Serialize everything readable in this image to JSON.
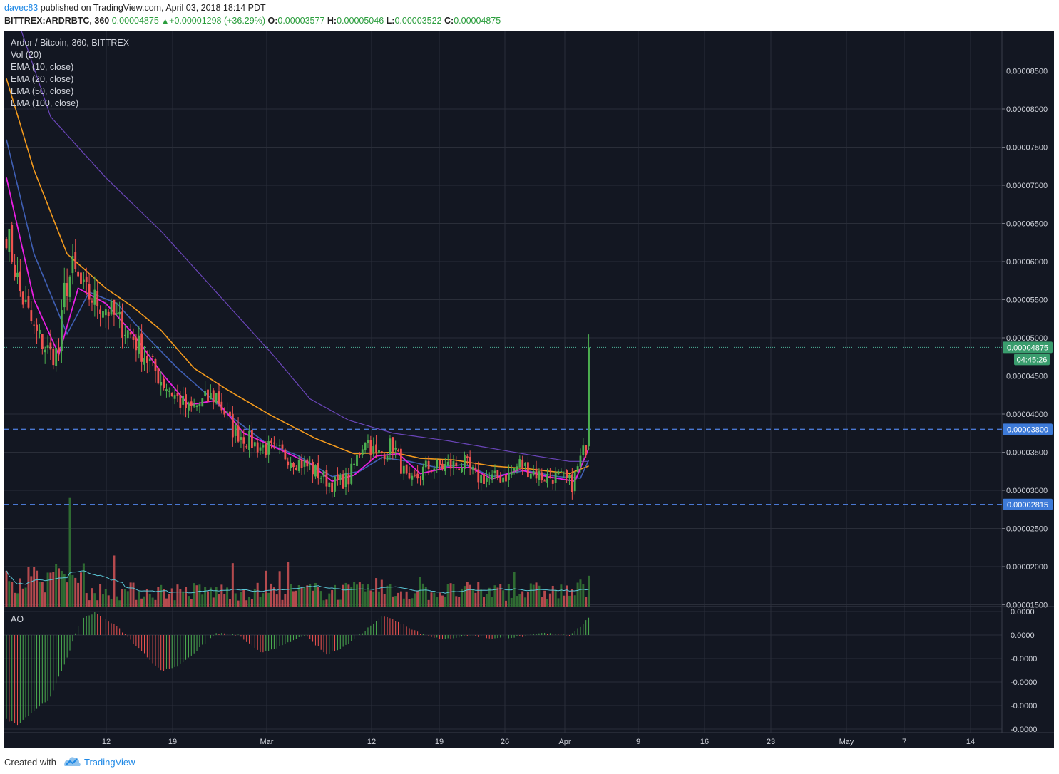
{
  "header": {
    "author": "davec83",
    "published_text": " published on TradingView.com, April 03, 2018 18:14 PDT",
    "symbol": "BITTREX:ARDRBTC, 360",
    "last": "0.00004875",
    "change": "+0.00001298 (+36.29%)",
    "o_label": "O:",
    "o_value": "0.00003577",
    "h_label": "H:",
    "h_value": "0.00005046",
    "l_label": "L:",
    "l_value": "0.00003522",
    "c_label": "C:",
    "c_value": "0.00004875"
  },
  "legend": {
    "title": "Ardor / Bitcoin, 360, BITTREX",
    "vol": "Vol (20)",
    "ema10": "EMA (10, close)",
    "ema20": "EMA (20, close)",
    "ema50": "EMA (50, close)",
    "ema100": "EMA (100, close)",
    "ao": "AO"
  },
  "footer": {
    "created_with": "Created with",
    "brand": "TradingView"
  },
  "colors": {
    "background": "#131722",
    "grid": "#2a2e39",
    "up": "#4caf50",
    "down": "#ef5350",
    "ema10": "#e91ee3",
    "ema20": "#3f5fb4",
    "ema50": "#f39a1d",
    "ema100": "#6a45b8",
    "vol_ma": "#5bc7d6",
    "hline": "#4a78d2",
    "price_badge": "#3a9d6e",
    "level_badge": "#3d7ad8"
  },
  "chart_data": {
    "type": "candlestick",
    "symbol": "ARDRBTC",
    "exchange": "BITTREX",
    "interval": "360",
    "y_axis_ticks": [
      "0.00008500",
      "0.00008000",
      "0.00007500",
      "0.00007000",
      "0.00006500",
      "0.00006000",
      "0.00005500",
      "0.00005000",
      "0.00004500",
      "0.00004000",
      "0.00003500",
      "0.00003000",
      "0.00002500",
      "0.00002000",
      "0.00001500"
    ],
    "y_range": [
      1.95e-05,
      8.55e-05
    ],
    "x_labels": [
      "12",
      "19",
      "Mar",
      "12",
      "19",
      "26",
      "Apr",
      "9",
      "16",
      "23",
      "May",
      "7",
      "14"
    ],
    "ao_axis_ticks": [
      "0.0000",
      "0.0000",
      "-0.0000",
      "-0.0000",
      "-0.0000",
      "-0.0000"
    ],
    "current_price": {
      "value": "0.00004875",
      "countdown": "04:45:26"
    },
    "horizontal_levels": [
      {
        "value": "0.00003800"
      },
      {
        "value": "0.00002815"
      }
    ],
    "price_anchors": [
      [
        0,
        6.4e-05
      ],
      [
        5,
        5.6e-05
      ],
      [
        10,
        5.1e-05
      ],
      [
        16,
        4.78e-05
      ],
      [
        19,
        4.82e-05
      ],
      [
        21,
        5.6e-05
      ],
      [
        24,
        5.9e-05
      ],
      [
        28,
        5.6e-05
      ],
      [
        36,
        5.4e-05
      ],
      [
        46,
        5e-05
      ],
      [
        56,
        4.45e-05
      ],
      [
        62,
        4.2e-05
      ],
      [
        66,
        4.05e-05
      ],
      [
        76,
        4.25e-05
      ],
      [
        82,
        3.8e-05
      ],
      [
        90,
        3.6e-05
      ],
      [
        100,
        3.48e-05
      ],
      [
        110,
        3.3e-05
      ],
      [
        118,
        3.08e-05
      ],
      [
        124,
        3.15e-05
      ],
      [
        130,
        3.7e-05
      ],
      [
        134,
        3.45e-05
      ],
      [
        140,
        3.6e-05
      ],
      [
        146,
        3.05e-05
      ],
      [
        152,
        3.3e-05
      ],
      [
        160,
        3.32e-05
      ],
      [
        166,
        3.35e-05
      ],
      [
        170,
        3.18e-05
      ],
      [
        176,
        3.15e-05
      ],
      [
        182,
        3.2e-05
      ],
      [
        186,
        3.35e-05
      ],
      [
        194,
        3.18e-05
      ],
      [
        200,
        3.18e-05
      ],
      [
        205,
        3.08e-05
      ],
      [
        208,
        3.4e-05
      ],
      [
        210,
        3.58e-05
      ],
      [
        211,
        4.88e-05
      ]
    ],
    "ema10_anchors": [
      [
        0,
        7.1e-05
      ],
      [
        10,
        5.5e-05
      ],
      [
        19,
        4.78e-05
      ],
      [
        26,
        5.65e-05
      ],
      [
        36,
        5.45e-05
      ],
      [
        46,
        5.05e-05
      ],
      [
        56,
        4.55e-05
      ],
      [
        66,
        4.12e-05
      ],
      [
        76,
        4.18e-05
      ],
      [
        86,
        3.75e-05
      ],
      [
        100,
        3.52e-05
      ],
      [
        110,
        3.35e-05
      ],
      [
        118,
        3.12e-05
      ],
      [
        126,
        3.2e-05
      ],
      [
        134,
        3.45e-05
      ],
      [
        142,
        3.48e-05
      ],
      [
        150,
        3.22e-05
      ],
      [
        160,
        3.3e-05
      ],
      [
        168,
        3.3e-05
      ],
      [
        176,
        3.15e-05
      ],
      [
        186,
        3.27e-05
      ],
      [
        196,
        3.18e-05
      ],
      [
        206,
        3.12e-05
      ],
      [
        211,
        3.55e-05
      ]
    ],
    "ema20_anchors": [
      [
        0,
        7.6e-05
      ],
      [
        10,
        6.1e-05
      ],
      [
        22,
        5.05e-05
      ],
      [
        30,
        5.6e-05
      ],
      [
        40,
        5.45e-05
      ],
      [
        50,
        5.05e-05
      ],
      [
        62,
        4.6e-05
      ],
      [
        72,
        4.28e-05
      ],
      [
        82,
        3.95e-05
      ],
      [
        94,
        3.62e-05
      ],
      [
        106,
        3.45e-05
      ],
      [
        118,
        3.18e-05
      ],
      [
        128,
        3.25e-05
      ],
      [
        136,
        3.43e-05
      ],
      [
        146,
        3.38e-05
      ],
      [
        156,
        3.3e-05
      ],
      [
        166,
        3.34e-05
      ],
      [
        176,
        3.18e-05
      ],
      [
        188,
        3.26e-05
      ],
      [
        200,
        3.18e-05
      ],
      [
        208,
        3.16e-05
      ],
      [
        211,
        3.4e-05
      ]
    ],
    "ema50_anchors": [
      [
        0,
        8.4e-05
      ],
      [
        10,
        7.2e-05
      ],
      [
        22,
        6.1e-05
      ],
      [
        36,
        5.65e-05
      ],
      [
        46,
        5.4e-05
      ],
      [
        56,
        5.1e-05
      ],
      [
        68,
        4.6e-05
      ],
      [
        80,
        4.32e-05
      ],
      [
        96,
        3.98e-05
      ],
      [
        112,
        3.68e-05
      ],
      [
        126,
        3.48e-05
      ],
      [
        140,
        3.5e-05
      ],
      [
        150,
        3.42e-05
      ],
      [
        162,
        3.4e-05
      ],
      [
        176,
        3.32e-05
      ],
      [
        190,
        3.28e-05
      ],
      [
        204,
        3.22e-05
      ],
      [
        211,
        3.32e-05
      ]
    ],
    "ema100_anchors": [
      [
        0,
        9.6e-05
      ],
      [
        16,
        7.9e-05
      ],
      [
        36,
        7.1e-05
      ],
      [
        56,
        6.4e-05
      ],
      [
        76,
        5.6e-05
      ],
      [
        96,
        4.8e-05
      ],
      [
        110,
        4.2e-05
      ],
      [
        124,
        3.92e-05
      ],
      [
        140,
        3.75e-05
      ],
      [
        160,
        3.65e-05
      ],
      [
        176,
        3.55e-05
      ],
      [
        192,
        3.45e-05
      ],
      [
        204,
        3.38e-05
      ],
      [
        211,
        3.38e-05
      ]
    ],
    "volume_spikes": [
      {
        "bar": 23,
        "value": 2.9e-05
      },
      {
        "bar": 134,
        "value": 1.85e-05
      },
      {
        "bar": 208,
        "value": 1.83e-05
      },
      {
        "bar": 211,
        "value": 1.88e-05
      }
    ],
    "ao_anchors": [
      [
        0,
        -0.95
      ],
      [
        4,
        -1.0
      ],
      [
        10,
        -0.85
      ],
      [
        16,
        -0.7
      ],
      [
        22,
        -0.25
      ],
      [
        27,
        0.18
      ],
      [
        32,
        0.25
      ],
      [
        40,
        0.1
      ],
      [
        48,
        -0.15
      ],
      [
        56,
        -0.4
      ],
      [
        62,
        -0.35
      ],
      [
        68,
        -0.2
      ],
      [
        76,
        0.02
      ],
      [
        84,
        0.0
      ],
      [
        92,
        -0.2
      ],
      [
        100,
        -0.12
      ],
      [
        108,
        0.0
      ],
      [
        116,
        -0.22
      ],
      [
        124,
        -0.1
      ],
      [
        130,
        0.05
      ],
      [
        136,
        0.22
      ],
      [
        142,
        0.15
      ],
      [
        150,
        0.02
      ],
      [
        158,
        -0.05
      ],
      [
        168,
        0.0
      ],
      [
        176,
        -0.04
      ],
      [
        186,
        -0.02
      ],
      [
        194,
        0.02
      ],
      [
        204,
        0.0
      ],
      [
        209,
        0.12
      ],
      [
        211,
        0.2
      ]
    ]
  }
}
